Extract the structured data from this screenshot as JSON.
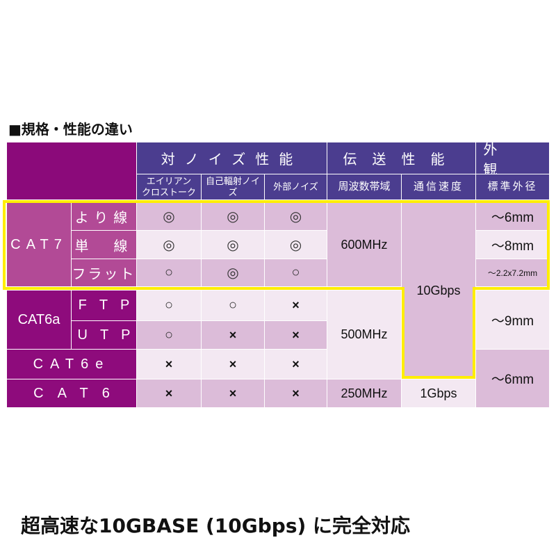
{
  "title": "■規格・性能の違い",
  "caption": "超高速な10GBASE (10Gbps) に完全対応",
  "header": {
    "noise": "対ノイズ性能",
    "transmission": "伝送性能",
    "appearance": "外　観",
    "alien_crosstalk": "エイリアン\nクロストーク",
    "self_radiation": "自己輻射ノイズ",
    "external": "外部ノイズ",
    "frequency": "周波数帯域",
    "speed": "通信速度",
    "diameter": "標準外径"
  },
  "rows": {
    "cat7": "CAT7",
    "twisted": "より線",
    "solid": "単　線",
    "flat": "フラット",
    "cat6a": "CAT6a",
    "ftp": "FTP",
    "utp": "UTP",
    "cat6e": "CAT6e",
    "cat6": "CAT6"
  },
  "marks": {
    "cat7_twisted": [
      "◎",
      "◎",
      "◎"
    ],
    "cat7_solid": [
      "◎",
      "◎",
      "◎"
    ],
    "cat7_flat": [
      "○",
      "◎",
      "○"
    ],
    "cat6a_ftp": [
      "○",
      "○",
      "×"
    ],
    "cat6a_utp": [
      "○",
      "×",
      "×"
    ],
    "cat6e": [
      "×",
      "×",
      "×"
    ],
    "cat6": [
      "×",
      "×",
      "×"
    ]
  },
  "freq": {
    "cat7": "600MHz",
    "cat6a_6e": "500MHz",
    "cat6": "250MHz"
  },
  "speed": {
    "cat7_6a_6e": "10Gbps",
    "cat6": "1Gbps"
  },
  "diameter": {
    "twisted": "～6mm",
    "solid": "～8mm",
    "flat": "～2.2x7.2mm",
    "cat6a": "～9mm",
    "cat6e_6": "～6mm"
  },
  "colors": {
    "header": "#4b3d8f",
    "cat7": "#b24a96",
    "cat6": "#8e0b7c",
    "highlight": "#ffee00"
  }
}
